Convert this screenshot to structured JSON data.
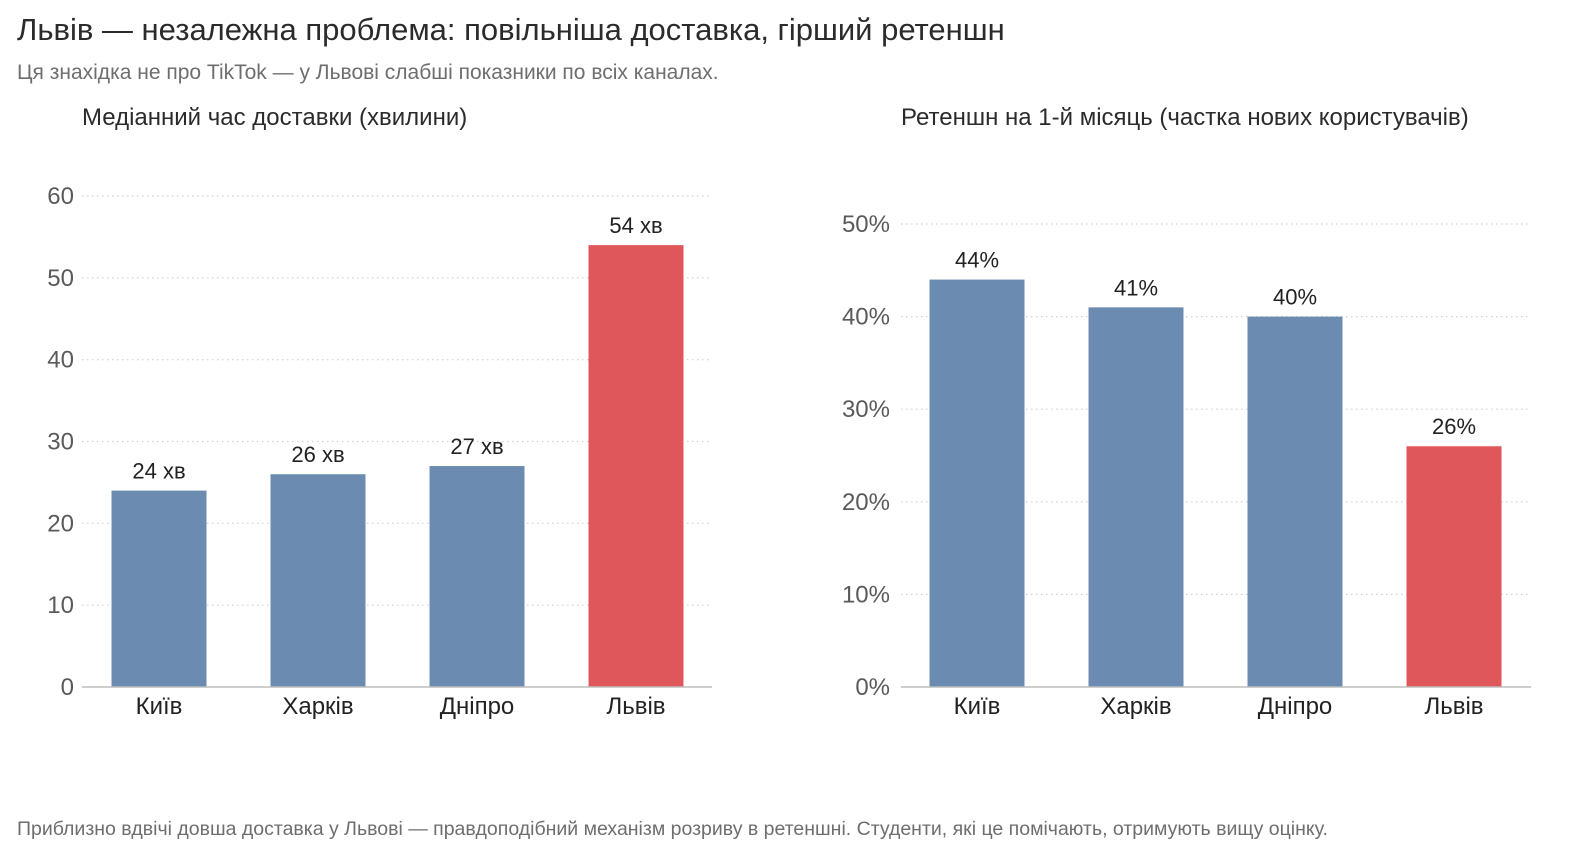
{
  "header": {
    "title": "Львів — незалежна проблема: повільніша доставка, гірший ретеншн",
    "subtitle": "Ця знахідка не про TikTok — у Львові слабші показники по всіх каналах."
  },
  "footnote": "Приблизно вдвічі довша доставка у Львові — правдоподібний механізм розриву в ретеншні. Студенти, які це помічають, отримують вищу оцінку.",
  "colors": {
    "base": "#6b8cb0",
    "highlight": "#e0575b",
    "grid": "#d0d0d0",
    "axis": "#bdbdbd"
  },
  "chart_data": [
    {
      "type": "bar",
      "title": "Медіанний час доставки (хвилини)",
      "categories": [
        "Київ",
        "Харків",
        "Дніпро",
        "Львів"
      ],
      "values": [
        24,
        26,
        27,
        54
      ],
      "value_labels": [
        "24 хв",
        "26 хв",
        "27 хв",
        "54 хв"
      ],
      "highlight": [
        false,
        false,
        false,
        true
      ],
      "ylim": [
        0,
        60
      ],
      "yticks": [
        0,
        10,
        20,
        30,
        40,
        50,
        60
      ],
      "ytick_labels": [
        "0",
        "10",
        "20",
        "30",
        "40",
        "50",
        "60"
      ],
      "grid": true
    },
    {
      "type": "bar",
      "title": "Ретеншн на 1-й місяць (частка нових користувачів)",
      "categories": [
        "Київ",
        "Харків",
        "Дніпро",
        "Львів"
      ],
      "values": [
        44,
        41,
        40,
        26
      ],
      "value_labels": [
        "44%",
        "41%",
        "40%",
        "26%"
      ],
      "highlight": [
        false,
        false,
        false,
        true
      ],
      "ylim": [
        0,
        50
      ],
      "yticks": [
        0,
        10,
        20,
        30,
        40,
        50
      ],
      "ytick_labels": [
        "0%",
        "10%",
        "20%",
        "30%",
        "40%",
        "50%"
      ],
      "grid": true
    }
  ]
}
